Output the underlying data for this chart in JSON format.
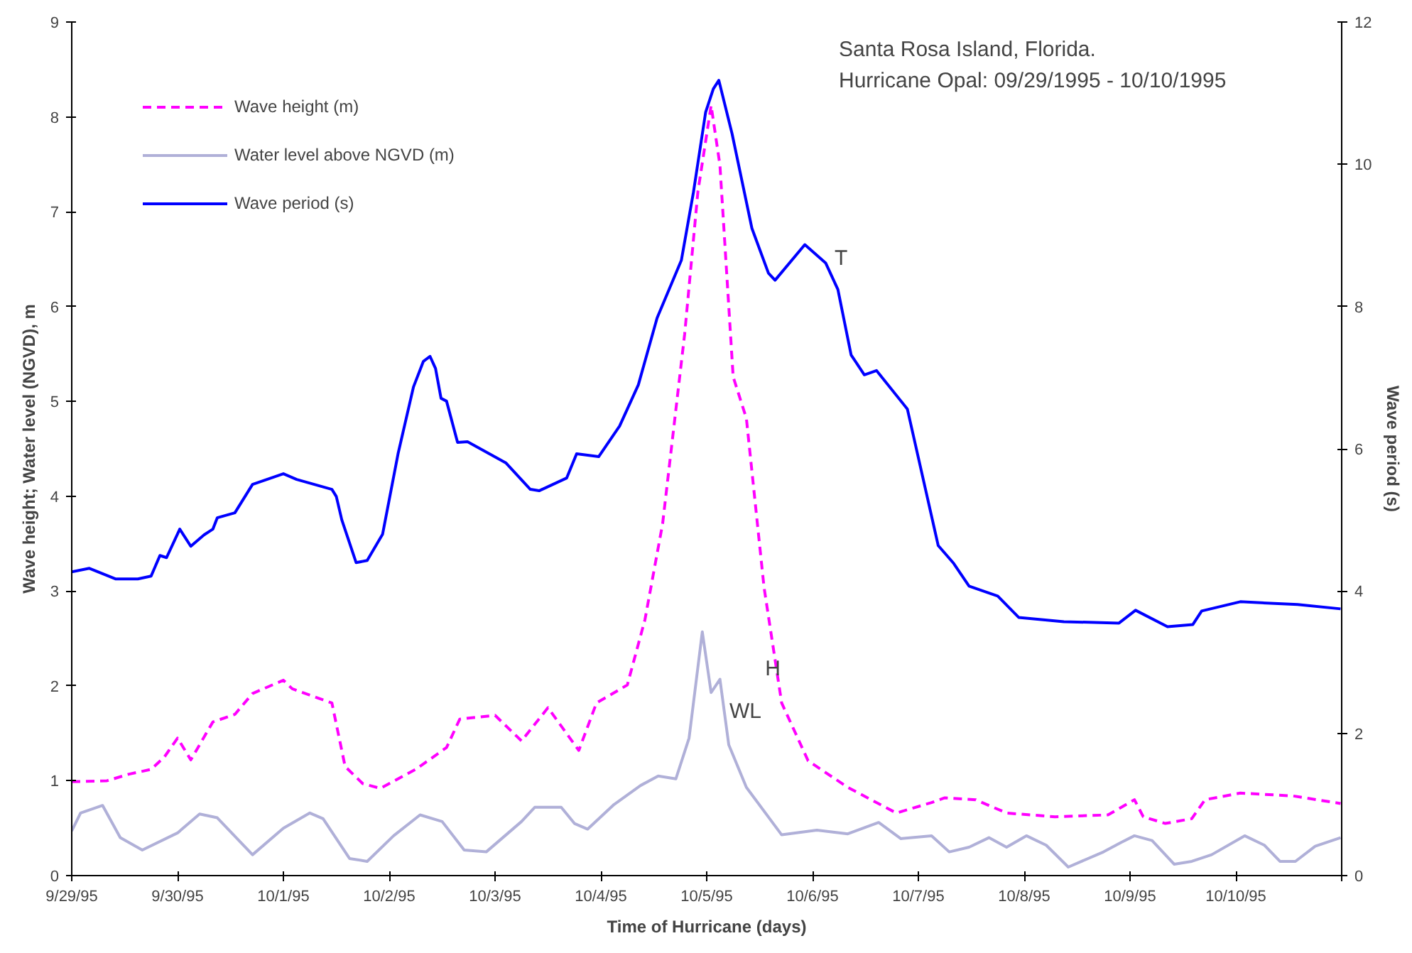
{
  "chart_data": {
    "type": "line",
    "xlabel": "Time of Hurricane (days)",
    "ylabel": "Wave height; Water level (NGVD), m",
    "y2label": "Wave period (s)",
    "xlim": [
      "1995-09-29",
      "1995-10-11"
    ],
    "xticks": [
      {
        "value": "1995-09-29",
        "label": "9/29/95"
      },
      {
        "value": "1995-09-30",
        "label": "9/30/95"
      },
      {
        "value": "1995-10-01",
        "label": "10/1/95"
      },
      {
        "value": "1995-10-02",
        "label": "10/2/95"
      },
      {
        "value": "1995-10-03",
        "label": "10/3/95"
      },
      {
        "value": "1995-10-04",
        "label": "10/4/95"
      },
      {
        "value": "1995-10-05",
        "label": "10/5/95"
      },
      {
        "value": "1995-10-06",
        "label": "10/6/95"
      },
      {
        "value": "1995-10-07",
        "label": "10/7/95"
      },
      {
        "value": "1995-10-08",
        "label": "10/8/95"
      },
      {
        "value": "1995-10-09",
        "label": "10/9/95"
      },
      {
        "value": "1995-10-10",
        "label": "10/10/95"
      },
      {
        "value": "1995-10-11",
        "label": null
      }
    ],
    "ylim": [
      0,
      9
    ],
    "yticks": [
      0,
      1,
      2,
      3,
      4,
      5,
      6,
      7,
      8,
      9
    ],
    "y2lim": [
      0,
      12
    ],
    "y2ticks": [
      0,
      2,
      4,
      6,
      8,
      10,
      12
    ],
    "grid": false,
    "legend": "top left",
    "marker": "none",
    "annotations": [
      "Santa Rosa Island, Florida.",
      "Hurricane Opal: 09/29/1995 - 10/10/1995",
      "T",
      {
        "text": "H",
        "x": "1995-10-05T15:00",
        "y": 2.18
      },
      "WL"
    ],
    "series": [
      {
        "name": "Wave height (m)",
        "color": "#ff00ff",
        "line_style": "dashed",
        "x": [
          "1995-09-29T00:00",
          "1995-09-29T08:00",
          "1995-09-29T13:00",
          "1995-09-29T18:00",
          "1995-09-29T21:00",
          "1995-09-30T00:00",
          "1995-09-30T03:00",
          "1995-09-30T08:00",
          "1995-09-30T13:00",
          "1995-09-30T17:00",
          "1995-10-01T00:00",
          "1995-10-01T02:00",
          "1995-10-01T11:00",
          "1995-10-01T14:00",
          "1995-10-01T18:00",
          "1995-10-01T22:00",
          "1995-10-02T06:00",
          "1995-10-02T13:00",
          "1995-10-02T16:00",
          "1995-10-03T00:00",
          "1995-10-03T06:00",
          "1995-10-03T12:00",
          "1995-10-03T19:00",
          "1995-10-03T23:00",
          "1995-10-04T06:00",
          "1995-10-04T10:00",
          "1995-10-04T14:00",
          "1995-10-04T19:00",
          "1995-10-04T22:00",
          "1995-10-05T01:00",
          "1995-10-05T03:00",
          "1995-10-05T06:00",
          "1995-10-05T09:00",
          "1995-10-05T13:00",
          "1995-10-05T17:00",
          "1995-10-05T23:00",
          "1995-10-06T08:00",
          "1995-10-06T19:00",
          "1995-10-07T03:00",
          "1995-10-07T06:00",
          "1995-10-07T13:00",
          "1995-10-07T20:00",
          "1995-10-08T07:00",
          "1995-10-08T19:00",
          "1995-10-09T01:00",
          "1995-10-09T03:00",
          "1995-10-09T08:00",
          "1995-10-09T14:00",
          "1995-10-09T17:00",
          "1995-10-10T01:00",
          "1995-10-10T13:00",
          "1995-10-10T23:45"
        ],
        "values": [
          0.99,
          1.0,
          1.07,
          1.12,
          1.25,
          1.45,
          1.22,
          1.62,
          1.7,
          1.92,
          2.06,
          1.97,
          1.82,
          1.15,
          0.97,
          0.92,
          1.12,
          1.35,
          1.65,
          1.69,
          1.42,
          1.77,
          1.32,
          1.82,
          2.01,
          2.7,
          3.71,
          5.71,
          7.21,
          8.12,
          7.49,
          5.26,
          4.82,
          3.04,
          1.82,
          1.21,
          0.93,
          0.66,
          0.77,
          0.82,
          0.8,
          0.66,
          0.62,
          0.64,
          0.8,
          0.62,
          0.55,
          0.6,
          0.8,
          0.87,
          0.84,
          0.76
        ]
      },
      {
        "name": "Water level above NGVD (m)",
        "color": "#b0b0d8",
        "line_style": "solid",
        "x": [
          "1995-09-29T00:00",
          "1995-09-29T02:00",
          "1995-09-29T07:00",
          "1995-09-29T11:00",
          "1995-09-29T16:00",
          "1995-09-30T00:00",
          "1995-09-30T05:00",
          "1995-09-30T09:00",
          "1995-09-30T17:00",
          "1995-10-01T00:00",
          "1995-10-01T06:00",
          "1995-10-01T09:00",
          "1995-10-01T15:00",
          "1995-10-01T19:00",
          "1995-10-02T01:00",
          "1995-10-02T07:00",
          "1995-10-02T12:00",
          "1995-10-02T17:00",
          "1995-10-02T22:00",
          "1995-10-03T06:00",
          "1995-10-03T09:00",
          "1995-10-03T15:00",
          "1995-10-03T18:00",
          "1995-10-03T21:00",
          "1995-10-04T03:00",
          "1995-10-04T09:00",
          "1995-10-04T13:00",
          "1995-10-04T17:00",
          "1995-10-04T20:00",
          "1995-10-04T23:00",
          "1995-10-05T01:00",
          "1995-10-05T03:00",
          "1995-10-05T05:00",
          "1995-10-05T09:00",
          "1995-10-05T17:00",
          "1995-10-06T01:00",
          "1995-10-06T08:00",
          "1995-10-06T15:00",
          "1995-10-06T20:00",
          "1995-10-07T03:00",
          "1995-10-07T07:00",
          "1995-10-07T11:30",
          "1995-10-07T16:00",
          "1995-10-07T20:00",
          "1995-10-08T00:30",
          "1995-10-08T05:00",
          "1995-10-08T10:00",
          "1995-10-08T18:00",
          "1995-10-08T22:00",
          "1995-10-09T01:00",
          "1995-10-09T05:00",
          "1995-10-09T10:00",
          "1995-10-09T14:00",
          "1995-10-09T18:30",
          "1995-10-10T02:00",
          "1995-10-10T06:30",
          "1995-10-10T10:00",
          "1995-10-10T13:30",
          "1995-10-10T18:00",
          "1995-10-10T23:45"
        ],
        "values": [
          0.47,
          0.66,
          0.74,
          0.4,
          0.27,
          0.45,
          0.65,
          0.61,
          0.22,
          0.5,
          0.66,
          0.6,
          0.18,
          0.15,
          0.42,
          0.64,
          0.57,
          0.27,
          0.25,
          0.57,
          0.72,
          0.72,
          0.55,
          0.49,
          0.75,
          0.95,
          1.05,
          1.02,
          1.45,
          2.57,
          1.93,
          2.07,
          1.38,
          0.93,
          0.43,
          0.48,
          0.44,
          0.56,
          0.39,
          0.42,
          0.25,
          0.3,
          0.4,
          0.3,
          0.42,
          0.32,
          0.09,
          0.25,
          0.35,
          0.42,
          0.37,
          0.12,
          0.15,
          0.22,
          0.42,
          0.32,
          0.15,
          0.15,
          0.31,
          0.4
        ]
      },
      {
        "name": "Wave period (s)",
        "color": "#0000ff",
        "line_style": "solid",
        "axis": "y2",
        "x": [
          "1995-09-29T00:00",
          "1995-09-29T04:00",
          "1995-09-29T10:00",
          "1995-09-29T15:00",
          "1995-09-29T18:00",
          "1995-09-29T20:00",
          "1995-09-29T21:30",
          "1995-09-30T00:30",
          "1995-09-30T03:00",
          "1995-09-30T06:00",
          "1995-09-30T08:00",
          "1995-09-30T09:00",
          "1995-09-30T13:00",
          "1995-09-30T17:00",
          "1995-10-01T00:00",
          "1995-10-01T03:00",
          "1995-10-01T11:00",
          "1995-10-01T12:00",
          "1995-10-01T13:15",
          "1995-10-01T16:30",
          "1995-10-01T19:00",
          "1995-10-01T22:30",
          "1995-10-02T02:00",
          "1995-10-02T05:30",
          "1995-10-02T07:45",
          "1995-10-02T09:15",
          "1995-10-02T10:30",
          "1995-10-02T11:45",
          "1995-10-02T13:00",
          "1995-10-02T15:30",
          "1995-10-02T17:45",
          "1995-10-03T02:30",
          "1995-10-03T08:00",
          "1995-10-03T10:00",
          "1995-10-03T16:15",
          "1995-10-03T18:30",
          "1995-10-03T23:30",
          "1995-10-04T04:15",
          "1995-10-04T08:30",
          "1995-10-04T12:45",
          "1995-10-04T18:15",
          "1995-10-04T21:00",
          "1995-10-04T23:45",
          "1995-10-05T01:30",
          "1995-10-05T02:45",
          "1995-10-05T05:45",
          "1995-10-05T10:15",
          "1995-10-05T14:00",
          "1995-10-05T15:30",
          "1995-10-05T22:15",
          "1995-10-06T03:00",
          "1995-10-06T05:45",
          "1995-10-06T08:45",
          "1995-10-06T11:45",
          "1995-10-06T14:30",
          "1995-10-06T21:30",
          "1995-10-07T04:30",
          "1995-10-07T08:00",
          "1995-10-07T11:30",
          "1995-10-07T18:00",
          "1995-10-07T22:45",
          "1995-10-08T09:00",
          "1995-10-08T21:30",
          "1995-10-09T01:15",
          "1995-10-09T08:30",
          "1995-10-09T14:15",
          "1995-10-09T16:15",
          "1995-10-10T01:00",
          "1995-10-10T14:00",
          "1995-10-10T23:45"
        ],
        "values": [
          4.27,
          4.32,
          4.17,
          4.17,
          4.21,
          4.5,
          4.47,
          4.87,
          4.63,
          4.79,
          4.87,
          5.03,
          5.1,
          5.5,
          5.65,
          5.57,
          5.43,
          5.33,
          5.0,
          4.4,
          4.43,
          4.8,
          5.93,
          6.87,
          7.23,
          7.3,
          7.13,
          6.71,
          6.67,
          6.09,
          6.1,
          5.8,
          5.43,
          5.41,
          5.59,
          5.93,
          5.89,
          6.32,
          6.9,
          7.84,
          8.65,
          9.61,
          10.73,
          11.06,
          11.18,
          10.43,
          9.1,
          8.47,
          8.37,
          8.87,
          8.61,
          8.24,
          7.32,
          7.04,
          7.1,
          6.56,
          4.64,
          4.39,
          4.07,
          3.93,
          3.63,
          3.57,
          3.55,
          3.73,
          3.5,
          3.53,
          3.72,
          3.85,
          3.81,
          3.75
        ]
      }
    ]
  }
}
